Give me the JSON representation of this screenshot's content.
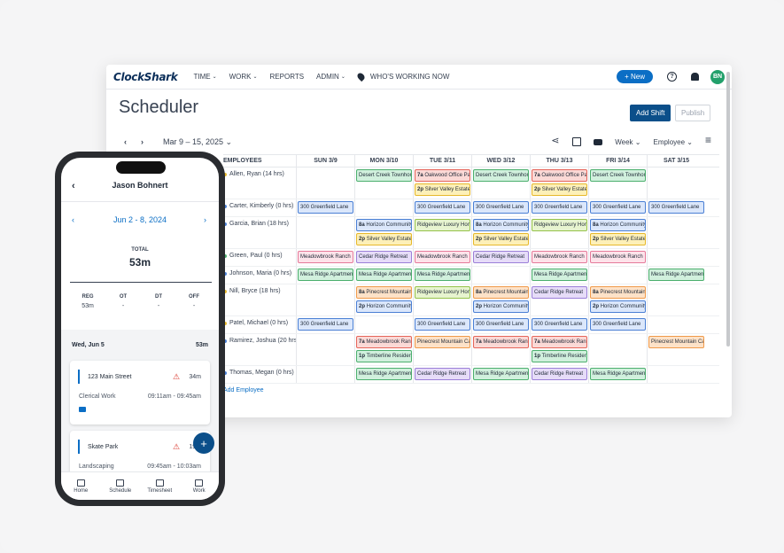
{
  "app": {
    "logo": "ClockShark",
    "nav": [
      "TIME",
      "WORK",
      "REPORTS",
      "ADMIN"
    ],
    "whos_working": "WHO'S WORKING NOW",
    "new_button": "+ New",
    "avatar_initials": "BN",
    "accent": "#0b6ec5"
  },
  "scheduler": {
    "title": "Scheduler",
    "add_shift": "Add Shift",
    "publish": "Publish",
    "date_range": "Mar 9 – 15, 2025",
    "view_week": "Week",
    "view_group": "Employee",
    "employees_header": "EMPLOYEES",
    "days": [
      "SUN 3/9",
      "MON 3/10",
      "TUE 3/11",
      "WED 3/12",
      "THU 3/13",
      "FRI 3/14",
      "SAT 3/15"
    ],
    "add_employee": "Add Employee",
    "rows": [
      {
        "name": "Allen, Ryan (14 hrs)",
        "dot": "#e6b82b",
        "cells": [
          [],
          [
            [
              "green",
              "",
              "Desert Creek Townhomes"
            ]
          ],
          [
            [
              "red",
              "7a",
              "Oakwood Office Park"
            ],
            [
              "yellow",
              "2p",
              "Silver Valley Estates"
            ]
          ],
          [
            [
              "green",
              "",
              "Desert Creek Townhomes"
            ]
          ],
          [
            [
              "red",
              "7a",
              "Oakwood Office Park"
            ],
            [
              "yellow",
              "2p",
              "Silver Valley Estates"
            ]
          ],
          [
            [
              "green",
              "",
              "Desert Creek Townhomes"
            ]
          ],
          []
        ]
      },
      {
        "name": "Carter, Kimberly (0 hrs)",
        "dot": "#4a7fd4",
        "cells": [
          [
            [
              "blue",
              "",
              "300 Greenfield Lane"
            ]
          ],
          [],
          [
            [
              "blue",
              "",
              "300 Greenfield Lane"
            ]
          ],
          [
            [
              "blue",
              "",
              "300 Greenfield Lane"
            ]
          ],
          [
            [
              "blue",
              "",
              "300 Greenfield Lane"
            ]
          ],
          [
            [
              "blue",
              "",
              "300 Greenfield Lane"
            ]
          ],
          [
            [
              "blue",
              "",
              "300 Greenfield Lane"
            ]
          ]
        ]
      },
      {
        "name": "Garcia, Brian (18 hrs)",
        "dot": "#4a7fd4",
        "cells": [
          [],
          [
            [
              "blue",
              "8a",
              "Horizon Community"
            ],
            [
              "yellow",
              "2p",
              "Silver Valley Estates"
            ]
          ],
          [
            [
              "lime",
              "",
              "Ridgeview Luxury Homes"
            ]
          ],
          [
            [
              "blue",
              "8a",
              "Horizon Community"
            ],
            [
              "yellow",
              "2p",
              "Silver Valley Estates"
            ]
          ],
          [
            [
              "lime",
              "",
              "Ridgeview Luxury Homes"
            ]
          ],
          [
            [
              "blue",
              "8a",
              "Horizon Community"
            ],
            [
              "yellow",
              "2p",
              "Silver Valley Estates"
            ]
          ],
          []
        ]
      },
      {
        "name": "Green, Paul (0 hrs)",
        "dot": "#4caf6e",
        "cells": [
          [
            [
              "pink",
              "",
              "Meadowbrook Ranch"
            ]
          ],
          [
            [
              "purple",
              "",
              "Cedar Ridge Retreat"
            ]
          ],
          [
            [
              "pink",
              "",
              "Meadowbrook Ranch"
            ]
          ],
          [
            [
              "purple",
              "",
              "Cedar Ridge Retreat"
            ]
          ],
          [
            [
              "pink",
              "",
              "Meadowbrook Ranch"
            ]
          ],
          [
            [
              "pink",
              "",
              "Meadowbrook Ranch"
            ]
          ],
          []
        ]
      },
      {
        "name": "Johnson, Maria (0 hrs)",
        "dot": "#4a7fd4",
        "cells": [
          [
            [
              "green",
              "",
              "Mesa Ridge Apartments"
            ]
          ],
          [
            [
              "green",
              "",
              "Mesa Ridge Apartments"
            ]
          ],
          [
            [
              "green",
              "",
              "Mesa Ridge Apartments"
            ]
          ],
          [],
          [
            [
              "green",
              "",
              "Mesa Ridge Apartments"
            ]
          ],
          [],
          [
            [
              "green",
              "",
              "Mesa Ridge Apartments"
            ]
          ]
        ]
      },
      {
        "name": "Nill, Bryce (18 hrs)",
        "dot": "#e6b82b",
        "cells": [
          [],
          [
            [
              "orange",
              "8a",
              "Pinecrest Mountain"
            ],
            [
              "blue",
              "2p",
              "Horizon Community"
            ]
          ],
          [
            [
              "lime",
              "",
              "Ridgeview Luxury Homes"
            ]
          ],
          [
            [
              "orange",
              "8a",
              "Pinecrest Mountain"
            ],
            [
              "blue",
              "2p",
              "Horizon Community"
            ]
          ],
          [
            [
              "purple",
              "",
              "Cedar Ridge Retreat"
            ]
          ],
          [
            [
              "orange",
              "8a",
              "Pinecrest Mountain"
            ],
            [
              "blue",
              "2p",
              "Horizon Community"
            ]
          ],
          []
        ]
      },
      {
        "name": "Patel, Michael (0 hrs)",
        "dot": "#e6b82b",
        "cells": [
          [
            [
              "blue",
              "",
              "300 Greenfield Lane"
            ]
          ],
          [],
          [
            [
              "blue",
              "",
              "300 Greenfield Lane"
            ]
          ],
          [
            [
              "blue",
              "",
              "300 Greenfield Lane"
            ]
          ],
          [
            [
              "blue",
              "",
              "300 Greenfield Lane"
            ]
          ],
          [
            [
              "blue",
              "",
              "300 Greenfield Lane"
            ]
          ],
          []
        ]
      },
      {
        "name": "Ramirez, Joshua (20 hrs)",
        "dot": "#4a7fd4",
        "cells": [
          [],
          [
            [
              "red",
              "7a",
              "Meadowbrook Ranch"
            ],
            [
              "green",
              "1p",
              "Timberline Residences"
            ]
          ],
          [
            [
              "orange",
              "",
              "Pinecrest Mountain Cabins"
            ]
          ],
          [
            [
              "red",
              "7a",
              "Meadowbrook Ranch"
            ]
          ],
          [
            [
              "red",
              "7a",
              "Meadowbrook Ranch"
            ],
            [
              "green",
              "1p",
              "Timberline Residences"
            ]
          ],
          [],
          [
            [
              "orange",
              "",
              "Pinecrest Mountain Cabins"
            ]
          ]
        ]
      },
      {
        "name": "Thomas, Megan (0 hrs)",
        "dot": "#4a7fd4",
        "cells": [
          [],
          [
            [
              "green",
              "",
              "Mesa Ridge Apartments"
            ]
          ],
          [
            [
              "purple",
              "",
              "Cedar Ridge Retreat"
            ]
          ],
          [
            [
              "green",
              "",
              "Mesa Ridge Apartments"
            ]
          ],
          [
            [
              "purple",
              "",
              "Cedar Ridge Retreat"
            ]
          ],
          [
            [
              "green",
              "",
              "Mesa Ridge Apartments"
            ]
          ],
          []
        ]
      }
    ]
  },
  "mobile": {
    "name": "Jason Bohnert",
    "week": "Jun 2 - 8, 2024",
    "total_label": "TOTAL",
    "total": "53m",
    "stats": [
      {
        "k": "REG",
        "v": "53m"
      },
      {
        "k": "OT",
        "v": "-"
      },
      {
        "k": "DT",
        "v": "-"
      },
      {
        "k": "OFF",
        "v": "-"
      }
    ],
    "day": "Wed, Jun 5",
    "day_total": "53m",
    "cards": [
      {
        "title": "123 Main Street",
        "mins": "34m",
        "role": "Clerical Work",
        "time": "09:11am - 09:45am"
      },
      {
        "title": "Skate Park",
        "mins": "19m",
        "role": "Landscaping",
        "time": "09:45am - 10:03am"
      }
    ],
    "tabs": [
      "Home",
      "Schedule",
      "Timesheet",
      "Work"
    ]
  }
}
